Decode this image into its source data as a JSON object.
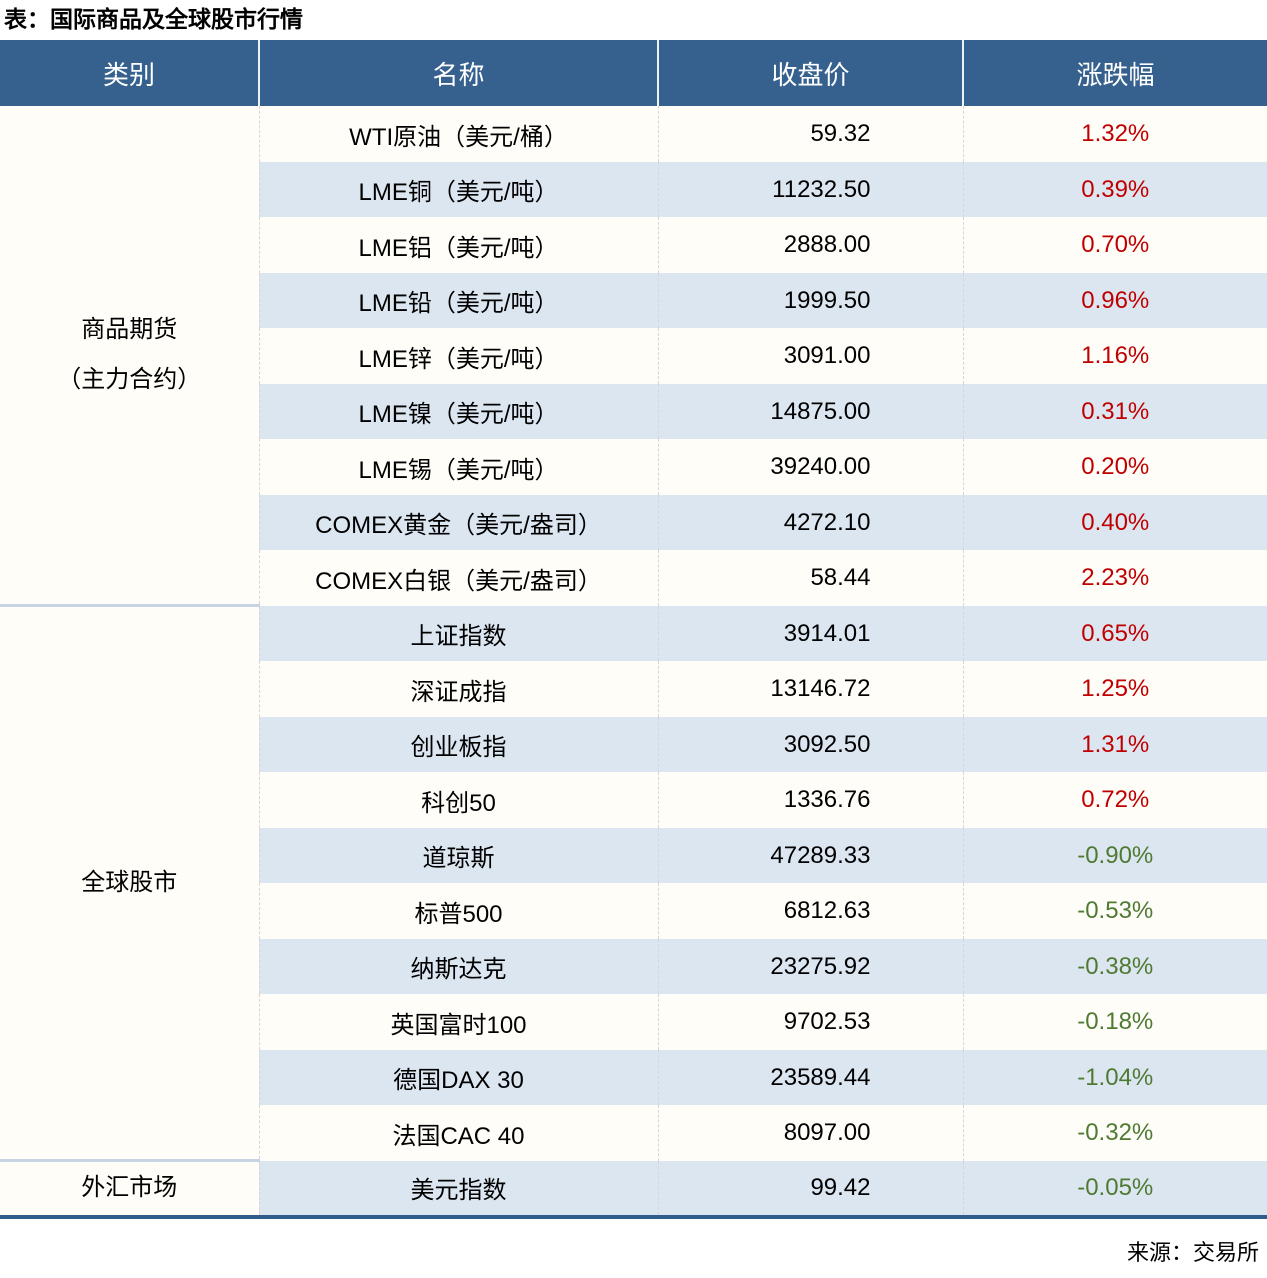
{
  "page": {
    "title": "表：国际商品及全球股市行情",
    "source": "来源：交易所"
  },
  "colors": {
    "header_bg": "#36618e",
    "header_text": "#ffffff",
    "row_bg": "#fefdf8",
    "row_alt_bg": "#dce6f1",
    "positive": "#c00000",
    "negative": "#4f7a32",
    "table_bottom_border": "#2e5d8c",
    "group_divider": "#c6d4e4"
  },
  "chart_data": {
    "type": "table",
    "title": "表：国际商品及全球股市行情",
    "source": "来源：交易所",
    "columns": [
      "类别",
      "名称",
      "收盘价",
      "涨跌幅"
    ],
    "groups": [
      {
        "category": "商品期货\n（主力合约）",
        "rows": [
          {
            "name": "WTI原油（美元/桶）",
            "close": "59.32",
            "change": "1.32%"
          },
          {
            "name": "LME铜（美元/吨）",
            "close": "11232.50",
            "change": "0.39%"
          },
          {
            "name": "LME铝（美元/吨）",
            "close": "2888.00",
            "change": "0.70%"
          },
          {
            "name": "LME铅（美元/吨）",
            "close": "1999.50",
            "change": "0.96%"
          },
          {
            "name": "LME锌（美元/吨）",
            "close": "3091.00",
            "change": "1.16%"
          },
          {
            "name": "LME镍（美元/吨）",
            "close": "14875.00",
            "change": "0.31%"
          },
          {
            "name": "LME锡（美元/吨）",
            "close": "39240.00",
            "change": "0.20%"
          },
          {
            "name": "COMEX黄金（美元/盎司）",
            "close": "4272.10",
            "change": "0.40%"
          },
          {
            "name": "COMEX白银（美元/盎司）",
            "close": "58.44",
            "change": "2.23%"
          }
        ]
      },
      {
        "category": "全球股市",
        "rows": [
          {
            "name": "上证指数",
            "close": "3914.01",
            "change": "0.65%"
          },
          {
            "name": "深证成指",
            "close": "13146.72",
            "change": "1.25%"
          },
          {
            "name": "创业板指",
            "close": "3092.50",
            "change": "1.31%"
          },
          {
            "name": "科创50",
            "close": "1336.76",
            "change": "0.72%"
          },
          {
            "name": "道琼斯",
            "close": "47289.33",
            "change": "-0.90%"
          },
          {
            "name": "标普500",
            "close": "6812.63",
            "change": "-0.53%"
          },
          {
            "name": "纳斯达克",
            "close": "23275.92",
            "change": "-0.38%"
          },
          {
            "name": "英国富时100",
            "close": "9702.53",
            "change": "-0.18%"
          },
          {
            "name": "德国DAX 30",
            "close": "23589.44",
            "change": "-1.04%"
          },
          {
            "name": "法国CAC 40",
            "close": "8097.00",
            "change": "-0.32%"
          }
        ]
      },
      {
        "category": "外汇市场",
        "rows": [
          {
            "name": "美元指数",
            "close": "99.42",
            "change": "-0.05%"
          }
        ]
      }
    ]
  }
}
